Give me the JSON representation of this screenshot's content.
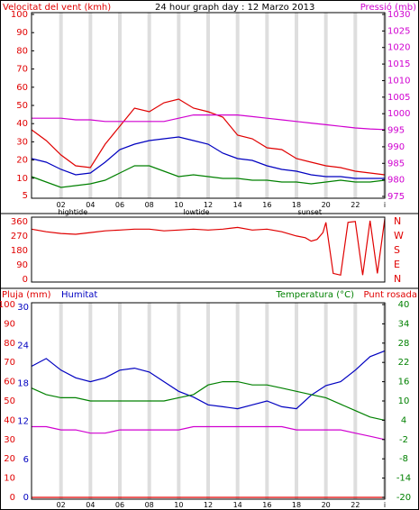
{
  "header": {
    "title": "24 hour graph day : 12 Marzo 2013",
    "wind_label": "Velocitat del vent (kmh)",
    "pressure_label": "Pressió (mb)"
  },
  "colors": {
    "wind_gust": "#e00000",
    "wind_avg": "#0000c0",
    "wind_min": "#008000",
    "pressure": "#d000d0",
    "grid_band": "#dedede",
    "frame": "#000000"
  },
  "panel2": {
    "dir_ticks_left": [
      "360",
      "270",
      "180",
      "90",
      "0"
    ],
    "dir_ticks_right": [
      "N",
      "W",
      "S",
      "E",
      "N"
    ]
  },
  "panel3": {
    "rain_label": "Pluja (mm)",
    "humidity_label": "Humitat",
    "temp_label": "Temperatura (°C)",
    "dew_label": "Punt rosada"
  },
  "x_axis": {
    "hour_ticks": [
      "02",
      "04",
      "06",
      "08",
      "10",
      "12",
      "14",
      "16",
      "18",
      "20",
      "22",
      "i"
    ],
    "events": [
      {
        "label": "hightide",
        "hour": 2.8
      },
      {
        "label": "lowtide",
        "hour": 11.2
      },
      {
        "label": "sunset",
        "hour": 18.9
      }
    ]
  },
  "chart_data": [
    {
      "type": "line",
      "title": "24 hour graph day : 12 Marzo 2013",
      "ylabel": "Velocitat del vent (kmh)",
      "y2label": "Pressió (mb)",
      "ylim": [
        0,
        100
      ],
      "y2lim": [
        975,
        1030
      ],
      "yticks": [
        10,
        20,
        30,
        40,
        50,
        60,
        70,
        80,
        90,
        100
      ],
      "y2ticks": [
        975,
        980,
        985,
        990,
        995,
        1000,
        1005,
        1010,
        1015,
        1020,
        1025,
        1030
      ],
      "x": [
        0,
        1,
        2,
        3,
        4,
        5,
        6,
        7,
        8,
        9,
        10,
        11,
        12,
        13,
        14,
        15,
        16,
        17,
        18,
        19,
        20,
        21,
        22,
        23,
        24
      ],
      "series": [
        {
          "name": "gust",
          "values": [
            38,
            32,
            24,
            18,
            17,
            30,
            40,
            50,
            48,
            53,
            55,
            50,
            48,
            45,
            35,
            33,
            28,
            27,
            22,
            20,
            18,
            17,
            15,
            14,
            13
          ]
        },
        {
          "name": "average",
          "values": [
            22,
            20,
            16,
            13,
            14,
            20,
            27,
            30,
            32,
            33,
            34,
            32,
            30,
            25,
            22,
            21,
            18,
            16,
            15,
            13,
            12,
            12,
            11,
            11,
            11
          ]
        },
        {
          "name": "minimum",
          "values": [
            12,
            9,
            6,
            7,
            8,
            10,
            14,
            18,
            18,
            15,
            12,
            13,
            12,
            11,
            11,
            10,
            10,
            9,
            9,
            8,
            9,
            10,
            9,
            9,
            10
          ]
        },
        {
          "name": "pressure",
          "values": [
            998,
            998,
            998,
            997.5,
            997.5,
            997,
            997,
            997,
            997,
            997,
            998,
            999,
            999,
            999,
            999,
            998.5,
            998,
            997.5,
            997,
            996.5,
            996,
            995.5,
            995,
            994.7,
            994.5
          ]
        }
      ]
    },
    {
      "type": "line",
      "ylim": [
        0,
        360
      ],
      "yticks": [
        0,
        90,
        180,
        270,
        360
      ],
      "x": [
        0,
        1,
        2,
        3,
        4,
        5,
        6,
        7,
        8,
        9,
        10,
        11,
        12,
        13,
        14,
        15,
        16,
        17,
        18,
        18.6,
        19,
        19.4,
        19.8,
        20,
        20.5,
        21,
        21.5,
        22,
        22.5,
        23,
        23.5,
        24
      ],
      "series": [
        {
          "name": "wind direction",
          "values": [
            300,
            285,
            275,
            270,
            280,
            290,
            295,
            300,
            300,
            290,
            295,
            300,
            295,
            300,
            310,
            295,
            300,
            285,
            260,
            250,
            230,
            240,
            280,
            340,
            40,
            30,
            340,
            345,
            30,
            350,
            40,
            360
          ]
        }
      ]
    },
    {
      "type": "line",
      "ylabel": "Pluja (mm)",
      "ylim": [
        0,
        100
      ],
      "yticks": [
        0,
        10,
        20,
        30,
        40,
        50,
        60,
        70,
        80,
        90,
        100
      ],
      "yticks_humidity": [
        0,
        6,
        12,
        18,
        24,
        30
      ],
      "y2lim": [
        -20,
        40
      ],
      "y2ticks": [
        -20,
        -14,
        -8,
        -2,
        4,
        10,
        16,
        22,
        28,
        34,
        40
      ],
      "x": [
        0,
        1,
        2,
        3,
        4,
        5,
        6,
        7,
        8,
        9,
        10,
        11,
        12,
        13,
        14,
        15,
        16,
        17,
        18,
        19,
        20,
        21,
        22,
        23,
        24
      ],
      "series": [
        {
          "name": "Humitat",
          "values": [
            68,
            72,
            66,
            62,
            60,
            62,
            66,
            67,
            65,
            60,
            55,
            52,
            48,
            47,
            46,
            48,
            50,
            47,
            46,
            53,
            58,
            60,
            66,
            73,
            76
          ]
        },
        {
          "name": "Temperatura (°C)",
          "values": [
            14,
            12,
            11,
            11,
            10,
            10,
            10,
            10,
            10,
            10,
            11,
            12,
            15,
            16,
            16,
            15,
            15,
            14,
            13,
            12,
            11,
            9,
            7,
            5,
            4
          ]
        },
        {
          "name": "Punt rosada",
          "values": [
            2,
            2,
            1,
            1,
            0,
            0,
            1,
            1,
            1,
            1,
            1,
            2,
            2,
            2,
            2,
            2,
            2,
            2,
            1,
            1,
            1,
            1,
            0,
            -1,
            -2
          ]
        },
        {
          "name": "Pluja (mm)",
          "values": [
            0,
            0,
            0,
            0,
            0,
            0,
            0,
            0,
            0,
            0,
            0,
            0,
            0,
            0,
            0,
            0,
            0,
            0,
            0,
            0,
            0,
            0,
            0,
            0,
            0
          ]
        }
      ]
    }
  ]
}
